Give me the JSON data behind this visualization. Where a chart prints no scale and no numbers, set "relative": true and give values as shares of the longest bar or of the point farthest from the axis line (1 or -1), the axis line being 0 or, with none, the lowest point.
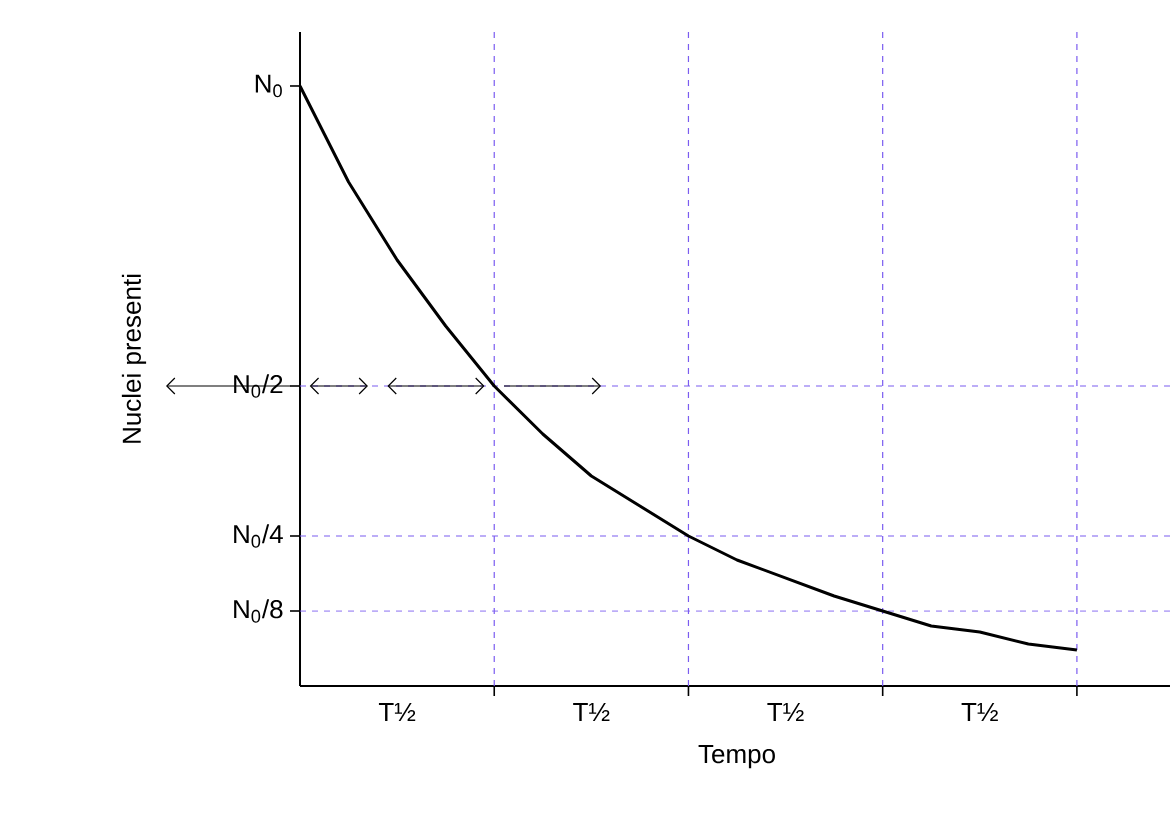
{
  "chart_data": {
    "type": "line",
    "relative": true,
    "xlabel": "Tempo",
    "ylabel": "Nuclei presenti",
    "categories": [
      null,
      null,
      "T½",
      null,
      null,
      null,
      "T½",
      null,
      null,
      null,
      "T½",
      null,
      null,
      null,
      "T½",
      null,
      null
    ],
    "series": [
      {
        "color": "#000000",
        "values": [
          1,
          0.84,
          0.71,
          0.6,
          0.5,
          0.42,
          0.35,
          0.3,
          0.25,
          0.21,
          0.18,
          0.15,
          0.125,
          0.1,
          0.09,
          0.07,
          0.06
        ]
      }
    ],
    "annotations": [
      "N$_{0}$"
    ],
    "grid": "x",
    "ref_lines": [
      {
        "axis": "y",
        "value": 0.5,
        "label": "N$_{0}$/2",
        "color": "#7b5cf0",
        "line_style": "dashed"
      },
      {
        "axis": "y",
        "value": 0.25,
        "label": "N$_{0}$/4",
        "color": "#7b5cf0",
        "line_style": "dashed"
      },
      {
        "axis": "y",
        "value": 0.125,
        "label": "N$_{0}$/8",
        "color": "#7b5cf0",
        "line_style": "dashed"
      }
    ],
    "line_style": "solid",
    "marker": "none"
  }
}
